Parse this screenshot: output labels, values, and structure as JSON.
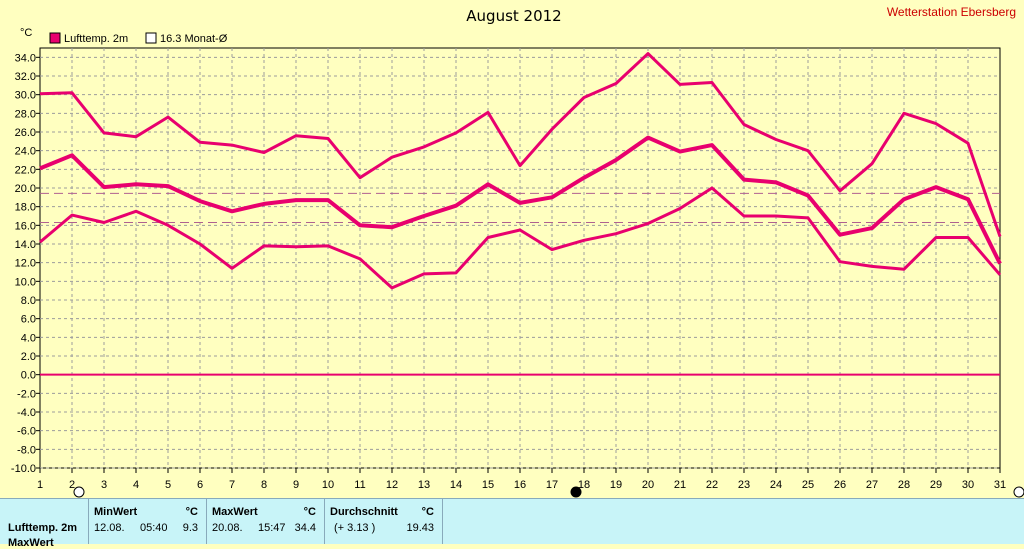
{
  "header": {
    "title": "August 2012",
    "station": "Wetterstation Ebersberg",
    "unit": "°C"
  },
  "legend": {
    "series_label": "Lufttemp. 2m",
    "average_label": "16.3 Monat-Ø"
  },
  "stats": {
    "row_label": "Lufttemp. 2m",
    "row2_label": "MaxWert",
    "min": {
      "header": "MinWert",
      "unit": "°C",
      "date": "12.08.",
      "time": "05:40",
      "value": "9.3"
    },
    "max": {
      "header": "MaxWert",
      "unit": "°C",
      "date": "20.08.",
      "time": "15:47",
      "value": "34.4"
    },
    "avg": {
      "header": "Durchschnitt",
      "unit": "°C",
      "deviation": "(+ 3.13 )",
      "value": "19.43"
    }
  },
  "colors": {
    "background": "#ffffc0",
    "series": "#e8006e",
    "grid": "#9c9c9c",
    "reference_line": "#b06090",
    "station_text": "#cc0000"
  },
  "chart_data": {
    "type": "line",
    "title": "August 2012",
    "ylabel": "°C",
    "ylim": [
      -10,
      35
    ],
    "yticks": [
      "34.0",
      "32.0",
      "30.0",
      "28.0",
      "26.0",
      "24.0",
      "22.0",
      "20.0",
      "18.0",
      "16.0",
      "14.0",
      "12.0",
      "10.0",
      "8.0",
      "6.0",
      "4.0",
      "2.0",
      "0.0",
      "-2.0",
      "-4.0",
      "-6.0",
      "-8.0",
      "-10.0"
    ],
    "x": [
      1,
      2,
      3,
      4,
      5,
      6,
      7,
      8,
      9,
      10,
      11,
      12,
      13,
      14,
      15,
      16,
      17,
      18,
      19,
      20,
      21,
      22,
      23,
      24,
      25,
      26,
      27,
      28,
      29,
      30,
      31
    ],
    "grid": true,
    "series": [
      {
        "role": "max",
        "values": [
          30.1,
          30.2,
          25.9,
          25.5,
          27.6,
          24.9,
          24.6,
          23.8,
          25.6,
          25.3,
          21.1,
          23.3,
          24.4,
          25.9,
          28.1,
          22.4,
          26.3,
          29.7,
          31.2,
          34.4,
          31.1,
          31.3,
          26.8,
          25.2,
          24.0,
          19.7,
          22.6,
          28.0,
          26.9,
          24.8,
          14.8
        ]
      },
      {
        "role": "mean",
        "values": [
          22.1,
          23.5,
          20.1,
          20.4,
          20.2,
          18.6,
          17.5,
          18.3,
          18.7,
          18.7,
          16.0,
          15.8,
          17.0,
          18.1,
          20.4,
          18.4,
          19.0,
          21.1,
          23.0,
          25.4,
          23.9,
          24.6,
          20.9,
          20.6,
          19.2,
          15.0,
          15.7,
          18.8,
          20.1,
          18.8,
          11.9
        ]
      },
      {
        "role": "min",
        "values": [
          14.2,
          17.1,
          16.3,
          17.5,
          16.0,
          14.0,
          11.4,
          13.8,
          13.7,
          13.8,
          12.4,
          9.3,
          10.8,
          10.9,
          14.7,
          15.5,
          13.4,
          14.4,
          15.1,
          16.2,
          17.8,
          20.0,
          17.0,
          17.0,
          16.8,
          12.1,
          11.6,
          11.3,
          14.7,
          14.7,
          10.7
        ]
      }
    ],
    "reference_lines": [
      {
        "value": 19.43
      },
      {
        "value": 16.3,
        "label": "16.3 Monat-Ø"
      }
    ],
    "zero_line": 0
  }
}
